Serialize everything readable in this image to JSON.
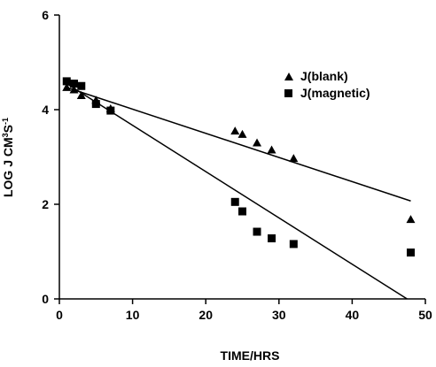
{
  "chart_data": {
    "type": "scatter",
    "xlabel": "TIME/HRS",
    "ylabel": {
      "base": "LOG J CM",
      "exp1": "3",
      "mid": "S",
      "exp2": "-1"
    },
    "xlim": [
      0,
      50
    ],
    "ylim": [
      0,
      6
    ],
    "x_ticks": [
      "0",
      "10",
      "20",
      "30",
      "40",
      "50"
    ],
    "y_ticks": [
      "0",
      "2",
      "4",
      "6"
    ],
    "grid": false,
    "legend_position": "top-right",
    "series": [
      {
        "name": "J(blank)",
        "marker": "triangle",
        "color": "#000000",
        "points": [
          [
            1,
            4.47
          ],
          [
            2,
            4.42
          ],
          [
            3,
            4.3
          ],
          [
            5,
            4.2
          ],
          [
            7,
            4.02
          ],
          [
            24,
            3.55
          ],
          [
            25,
            3.48
          ],
          [
            27,
            3.3
          ],
          [
            29,
            3.15
          ],
          [
            32,
            2.97
          ],
          [
            48,
            1.68
          ]
        ],
        "trendline": [
          [
            1,
            4.47
          ],
          [
            48,
            2.07
          ]
        ]
      },
      {
        "name": "J(magnetic)",
        "marker": "square",
        "color": "#000000",
        "points": [
          [
            1,
            4.6
          ],
          [
            2,
            4.55
          ],
          [
            3,
            4.5
          ],
          [
            5,
            4.12
          ],
          [
            7,
            3.98
          ],
          [
            24,
            2.05
          ],
          [
            25,
            1.85
          ],
          [
            27,
            1.42
          ],
          [
            29,
            1.28
          ],
          [
            32,
            1.16
          ],
          [
            48,
            0.98
          ]
        ],
        "trendline": [
          [
            1,
            4.55
          ],
          [
            47.5,
            0.0
          ]
        ]
      }
    ]
  }
}
